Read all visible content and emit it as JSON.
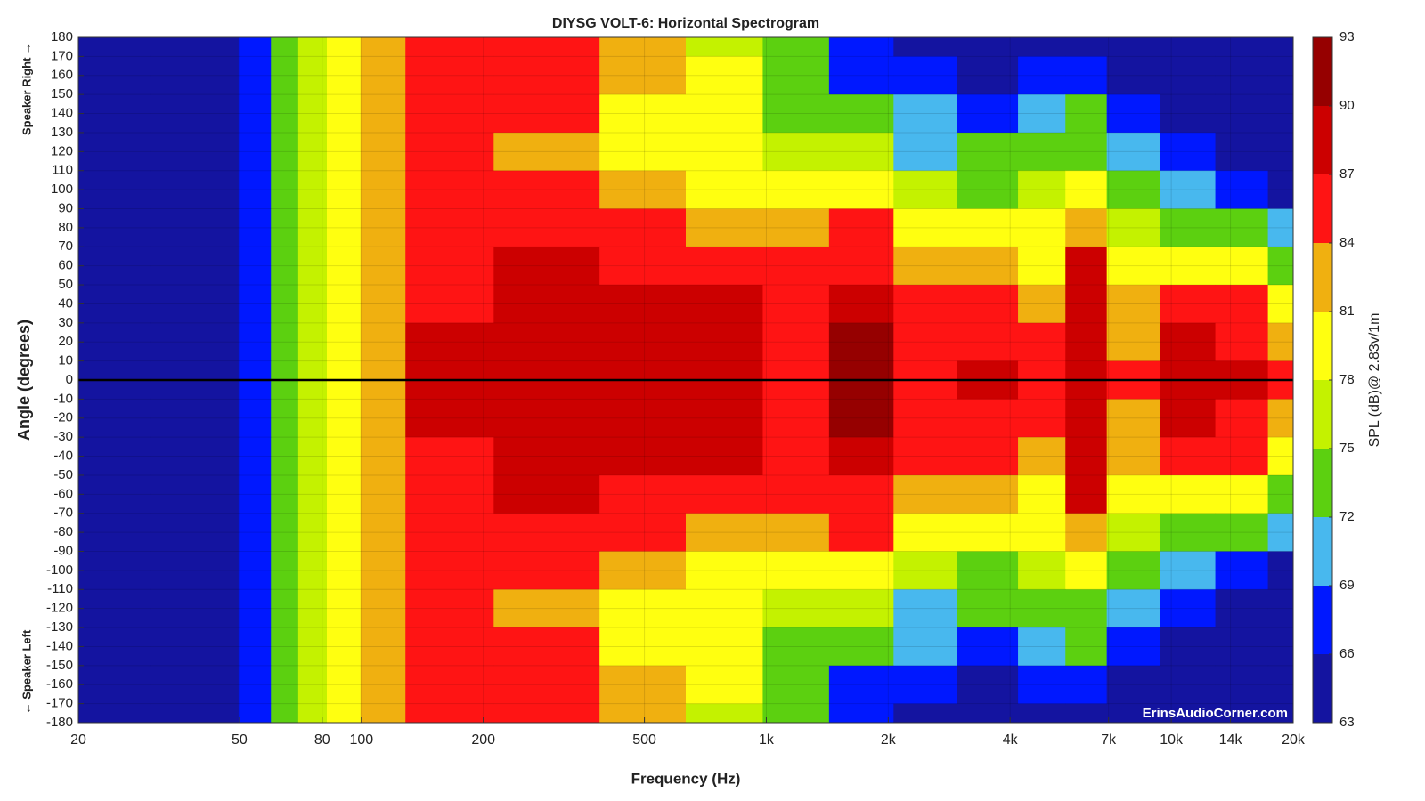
{
  "chart_data": {
    "type": "heatmap",
    "title": "DIYSG VOLT-6: Horizontal Spectrogram",
    "x_label": "Frequency (Hz)",
    "y_label": "Angle (degrees)",
    "annotation_top": "Speaker Right →",
    "annotation_bottom": "← Speaker Left",
    "watermark": "ErinsAudioCorner.com",
    "x_log": true,
    "xlim": [
      20,
      20000
    ],
    "ylim": [
      -180,
      180
    ],
    "xticks": [
      20,
      50,
      80,
      100,
      200,
      500,
      {
        "value": 1000,
        "label": "1k"
      },
      {
        "value": 2000,
        "label": "2k"
      },
      {
        "value": 4000,
        "label": "4k"
      },
      {
        "value": 7000,
        "label": "7k"
      },
      {
        "value": 10000,
        "label": "10k"
      },
      {
        "value": 14000,
        "label": "14k"
      },
      {
        "value": 20000,
        "label": "20k"
      }
    ],
    "yticks": [
      180,
      170,
      160,
      150,
      140,
      130,
      120,
      110,
      100,
      90,
      80,
      70,
      60,
      50,
      40,
      30,
      20,
      10,
      0,
      -10,
      -20,
      -30,
      -40,
      -50,
      -60,
      -70,
      -80,
      -90,
      -100,
      -110,
      -120,
      -130,
      -140,
      -150,
      -160,
      -170,
      -180
    ],
    "hline": 0,
    "grid": true,
    "x": [
      20,
      45,
      55,
      65,
      75,
      90,
      110,
      150,
      300,
      500,
      800,
      1200,
      1700,
      2500,
      3500,
      5000,
      6000,
      8000,
      11000,
      15000,
      20000
    ],
    "y": [
      180,
      160,
      140,
      120,
      100,
      80,
      60,
      40,
      20,
      0,
      -20,
      -40,
      -60,
      -80,
      -100,
      -120,
      -140,
      -160,
      -180
    ],
    "z": [
      [
        64,
        65,
        68,
        72,
        76,
        80,
        83,
        85,
        85,
        82,
        77,
        73,
        67,
        65,
        64,
        64,
        64,
        64,
        64,
        64,
        64
      ],
      [
        64,
        65,
        68,
        72,
        76,
        80,
        83,
        85,
        85,
        82,
        78,
        73,
        68,
        66,
        64,
        66,
        68,
        64,
        64,
        64,
        64
      ],
      [
        64,
        65,
        68,
        72,
        76,
        80,
        83,
        85,
        84,
        80,
        78,
        74,
        72,
        69,
        68,
        70,
        72,
        67,
        65,
        64,
        64
      ],
      [
        64,
        65,
        68,
        72,
        76,
        80,
        83,
        85,
        83,
        79,
        79,
        76,
        75,
        71,
        72,
        72,
        74,
        69,
        66,
        65,
        64
      ],
      [
        64,
        65,
        68,
        72,
        76,
        80,
        83,
        85,
        85,
        82,
        80,
        79,
        78,
        75,
        74,
        76,
        78,
        72,
        70,
        68,
        65
      ],
      [
        64,
        65,
        68,
        72,
        76,
        80,
        83,
        85,
        85,
        84,
        82,
        83,
        84,
        79,
        79,
        78,
        83,
        77,
        74,
        73,
        70
      ],
      [
        64,
        65,
        68,
        72,
        76,
        80,
        83,
        86,
        87,
        86,
        85,
        84,
        86,
        82,
        82,
        80,
        87,
        79,
        80,
        78,
        73
      ],
      [
        64,
        65,
        68,
        72,
        76,
        80,
        83,
        86,
        88,
        87,
        87,
        85,
        88,
        84,
        85,
        83,
        88,
        82,
        86,
        85,
        78
      ],
      [
        64,
        65,
        68,
        72,
        76,
        80,
        83,
        87,
        88,
        88,
        87,
        86,
        90,
        84,
        86,
        84,
        87,
        83,
        87,
        86,
        81
      ],
      [
        64,
        65,
        68,
        72,
        76,
        80,
        83,
        88,
        88,
        88,
        88,
        86,
        91,
        85,
        87,
        85,
        87,
        84,
        88,
        88,
        84
      ],
      [
        64,
        65,
        68,
        72,
        76,
        80,
        83,
        87,
        88,
        88,
        87,
        86,
        90,
        84,
        86,
        84,
        87,
        83,
        87,
        86,
        81
      ],
      [
        64,
        65,
        68,
        72,
        76,
        80,
        83,
        86,
        88,
        87,
        87,
        85,
        88,
        84,
        85,
        83,
        88,
        82,
        86,
        85,
        78
      ],
      [
        64,
        65,
        68,
        72,
        76,
        80,
        83,
        86,
        87,
        86,
        85,
        84,
        86,
        82,
        82,
        80,
        87,
        79,
        80,
        78,
        73
      ],
      [
        64,
        65,
        68,
        72,
        76,
        80,
        83,
        85,
        85,
        84,
        82,
        83,
        84,
        79,
        79,
        78,
        83,
        77,
        74,
        73,
        70
      ],
      [
        64,
        65,
        68,
        72,
        76,
        80,
        83,
        85,
        85,
        82,
        80,
        79,
        78,
        75,
        74,
        76,
        78,
        72,
        70,
        68,
        65
      ],
      [
        64,
        65,
        68,
        72,
        76,
        80,
        83,
        85,
        83,
        79,
        79,
        76,
        75,
        71,
        72,
        72,
        74,
        69,
        66,
        65,
        64
      ],
      [
        64,
        65,
        68,
        72,
        76,
        80,
        83,
        85,
        84,
        80,
        78,
        74,
        72,
        69,
        68,
        70,
        72,
        67,
        65,
        64,
        64
      ],
      [
        64,
        65,
        68,
        72,
        76,
        80,
        83,
        85,
        85,
        82,
        78,
        73,
        68,
        66,
        64,
        66,
        68,
        64,
        64,
        64,
        64
      ],
      [
        64,
        65,
        68,
        72,
        76,
        80,
        83,
        85,
        85,
        82,
        77,
        73,
        67,
        65,
        64,
        64,
        64,
        64,
        64,
        64,
        64
      ]
    ],
    "colorbar": {
      "label": "SPL (dB)@ 2.83v/1m",
      "levels": [
        63,
        66,
        69,
        72,
        75,
        78,
        81,
        84,
        87,
        90,
        93
      ],
      "colors": [
        "#1414a0",
        "#0018ff",
        "#48b8ee",
        "#5cd010",
        "#c4f200",
        "#ffff10",
        "#f0b010",
        "#ff1414",
        "#cc0000",
        "#960000"
      ]
    }
  }
}
